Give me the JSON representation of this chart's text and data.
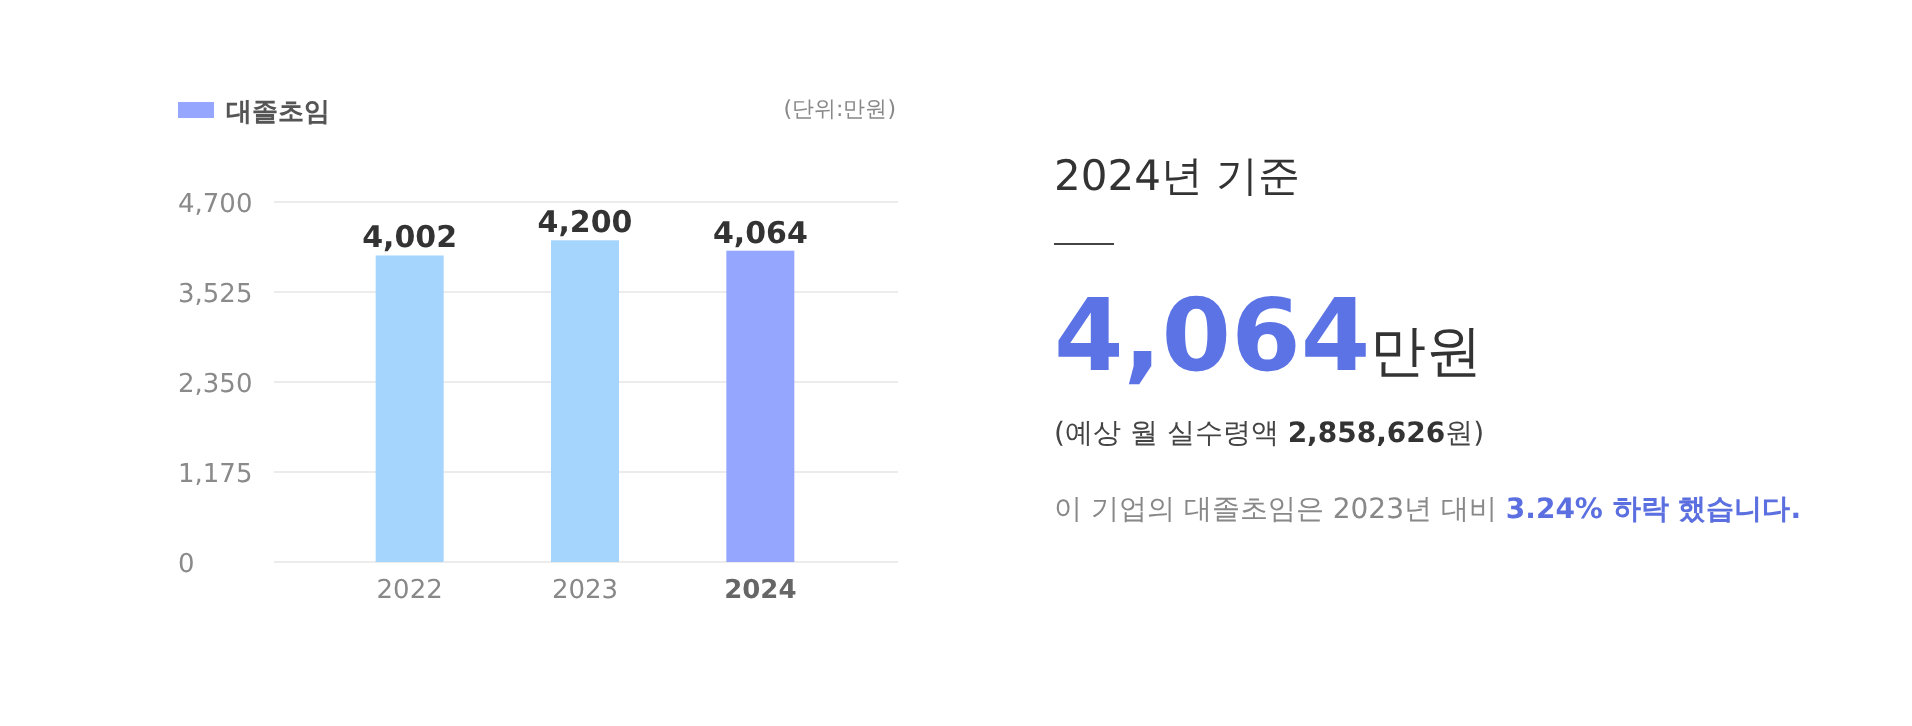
{
  "chart_data": [
    {
      "type": "bar",
      "categories": [
        "2022",
        "2023",
        "2024"
      ],
      "series": [
        {
          "name": "대졸초임",
          "values": [
            4002,
            4200,
            4064
          ],
          "value_labels": [
            "4,002",
            "4,200",
            "4,064"
          ]
        }
      ],
      "colors": [
        "#a5d5fd",
        "#a5d5fd",
        "#94a6fe"
      ],
      "ylim": [
        0,
        4700
      ],
      "yticks": [
        {
          "value": 0,
          "label": "0"
        },
        {
          "value": 1175,
          "label": "1,175"
        },
        {
          "value": 2350,
          "label": "2,350"
        },
        {
          "value": 3525,
          "label": "3,525"
        },
        {
          "value": 4700,
          "label": "4,700"
        }
      ],
      "grid": "y",
      "legend": "top left",
      "annotations": [
        "(단위:만원)"
      ]
    },
    {
      "type": "other",
      "title": "2024년 기준",
      "annotations": [
        "**4,064**만원",
        "(예상 월 실수령액 **2,858,626**원)",
        "이 기업의 대졸초임은 2023년 대비 **3.24% 하락 했습니다.**"
      ]
    }
  ]
}
